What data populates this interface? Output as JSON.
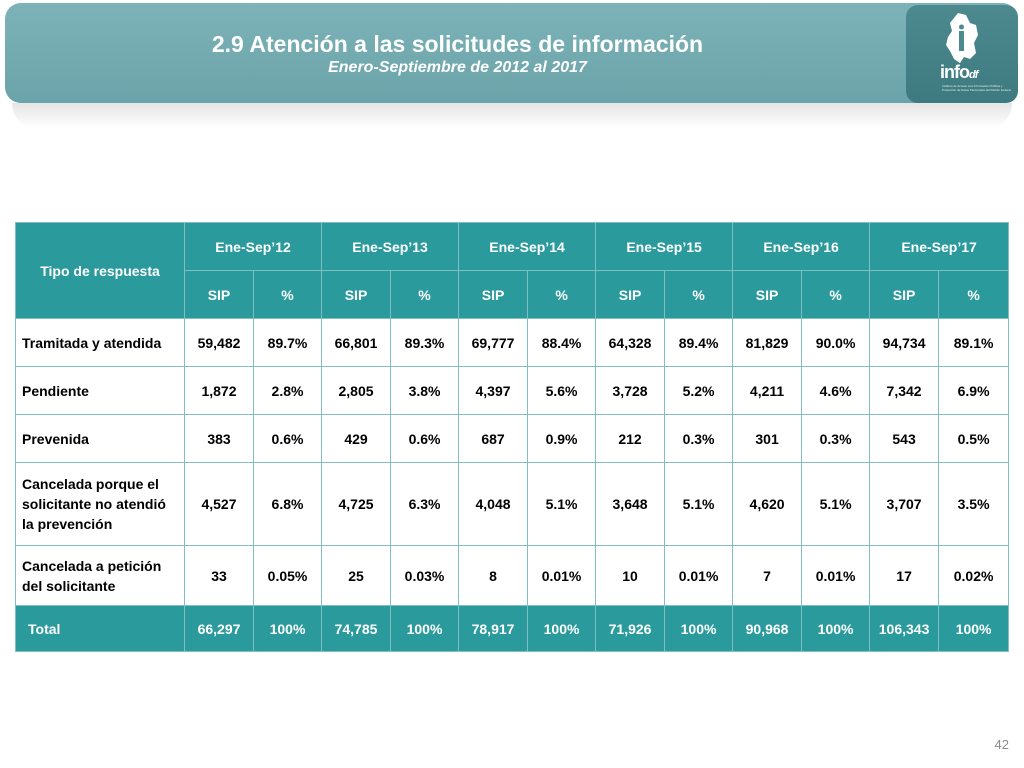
{
  "header": {
    "title": "2.9 Atención a las solicitudes de información",
    "subtitle": "Enero-Septiembre de 2012 al 2017"
  },
  "logo": {
    "name": "infoDF",
    "word": "info",
    "suffix": "df",
    "fine_print": "Instituto de Acceso a la Información Pública y Protección de Datos Personales del Distrito Federal"
  },
  "table": {
    "row_header": "Tipo de respuesta",
    "periods": [
      "Ene-Sep’12",
      "Ene-Sep’13",
      "Ene-Sep’14",
      "Ene-Sep’15",
      "Ene-Sep’16",
      "Ene-Sep’17"
    ],
    "sub_sip": "SIP",
    "sub_pct": "%",
    "rows": [
      {
        "label": "Tramitada y atendida",
        "values": [
          "59,482",
          "89.7%",
          "66,801",
          "89.3%",
          "69,777",
          "88.4%",
          "64,328",
          "89.4%",
          "81,829",
          "90.0%",
          "94,734",
          "89.1%"
        ]
      },
      {
        "label": "Pendiente",
        "values": [
          "1,872",
          "2.8%",
          "2,805",
          "3.8%",
          "4,397",
          "5.6%",
          "3,728",
          "5.2%",
          "4,211",
          "4.6%",
          "7,342",
          "6.9%"
        ]
      },
      {
        "label": "Prevenida",
        "values": [
          "383",
          "0.6%",
          "429",
          "0.6%",
          "687",
          "0.9%",
          "212",
          "0.3%",
          "301",
          "0.3%",
          "543",
          "0.5%"
        ]
      },
      {
        "label_lines": [
          "Cancelada porque el",
          "solicitante no atendió",
          "la prevención"
        ],
        "values": [
          "4,527",
          "6.8%",
          "4,725",
          "6.3%",
          "4,048",
          "5.1%",
          "3,648",
          "5.1%",
          "4,620",
          "5.1%",
          "3,707",
          "3.5%"
        ]
      },
      {
        "label_lines": [
          "Cancelada a petición",
          "del solicitante"
        ],
        "values": [
          "33",
          "0.05%",
          "25",
          "0.03%",
          "8",
          "0.01%",
          "10",
          "0.01%",
          "7",
          "0.01%",
          "17",
          "0.02%"
        ]
      }
    ],
    "total": {
      "label": "Total",
      "values": [
        "66,297",
        "100%",
        "74,785",
        "100%",
        "78,917",
        "100%",
        "71,926",
        "100%",
        "90,968",
        "100%",
        "106,343",
        "100%"
      ]
    }
  },
  "page_number": "42"
}
